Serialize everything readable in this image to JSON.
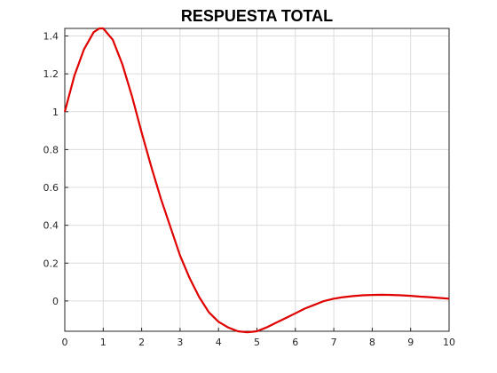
{
  "colors": {
    "line": "#e00000",
    "grid": "#dcdcdc",
    "axis": "#262626",
    "background": "#ffffff"
  },
  "chart_data": {
    "type": "line",
    "title": "RESPUESTA TOTAL",
    "xlabel": "",
    "ylabel": "",
    "xlim": [
      0,
      10
    ],
    "ylim": [
      -0.16,
      1.44
    ],
    "grid": true,
    "x_ticks": [
      0,
      1,
      2,
      3,
      4,
      5,
      6,
      7,
      8,
      9,
      10
    ],
    "x_tick_labels": [
      "0",
      "1",
      "2",
      "3",
      "4",
      "5",
      "6",
      "7",
      "8",
      "9",
      "10"
    ],
    "y_ticks": [
      0,
      0.2,
      0.4,
      0.6,
      0.8,
      1,
      1.2,
      1.4
    ],
    "y_tick_labels": [
      "0",
      "0.2",
      "0.4",
      "0.6",
      "0.8",
      "1",
      "1.2",
      "1.4"
    ],
    "series": [
      {
        "x": [
          0,
          0.25,
          0.5,
          0.75,
          0.9,
          1.0,
          1.25,
          1.5,
          1.75,
          2.0,
          2.25,
          2.5,
          2.75,
          3.0,
          3.25,
          3.5,
          3.75,
          4.0,
          4.25,
          4.5,
          4.75,
          5.0,
          5.25,
          5.5,
          5.75,
          6.0,
          6.25,
          6.5,
          6.75,
          7.0,
          7.25,
          7.5,
          7.75,
          8.0,
          8.25,
          8.5,
          8.75,
          9.0,
          9.25,
          9.5,
          9.75,
          10.0
        ],
        "y": [
          1.0,
          1.19,
          1.33,
          1.42,
          1.44,
          1.44,
          1.38,
          1.25,
          1.08,
          0.89,
          0.71,
          0.54,
          0.39,
          0.24,
          0.12,
          0.02,
          -0.06,
          -0.11,
          -0.14,
          -0.16,
          -0.165,
          -0.16,
          -0.14,
          -0.115,
          -0.09,
          -0.065,
          -0.04,
          -0.02,
          0.0,
          0.012,
          0.02,
          0.026,
          0.03,
          0.032,
          0.033,
          0.032,
          0.03,
          0.027,
          0.023,
          0.02,
          0.016,
          0.012
        ]
      }
    ]
  }
}
